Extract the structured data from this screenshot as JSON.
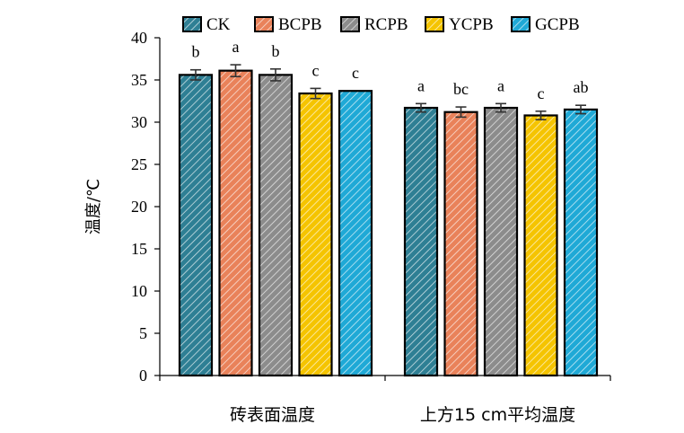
{
  "chart_data": {
    "type": "bar",
    "title": "",
    "ylabel": "温度/℃",
    "xlabel": "",
    "ylim": [
      0,
      40
    ],
    "yticks": [
      0,
      5,
      10,
      15,
      20,
      25,
      30,
      35,
      40
    ],
    "categories": [
      "砖表面温度",
      "上方15 cm平均温度"
    ],
    "legend_position": "top",
    "grid": false,
    "series": [
      {
        "name": "CK",
        "color": "#2E7F94",
        "values": [
          35.6,
          31.7
        ],
        "errors": [
          0.6,
          0.5
        ],
        "sig": [
          "b",
          "a"
        ]
      },
      {
        "name": "BCPB",
        "color": "#E9825A",
        "values": [
          36.1,
          31.2
        ],
        "errors": [
          0.7,
          0.6
        ],
        "sig": [
          "a",
          "bc"
        ]
      },
      {
        "name": "RCPB",
        "color": "#8C8C8C",
        "values": [
          35.6,
          31.7
        ],
        "errors": [
          0.7,
          0.5
        ],
        "sig": [
          "b",
          "a"
        ]
      },
      {
        "name": "YCPB",
        "color": "#F5C400",
        "values": [
          33.4,
          30.8
        ],
        "errors": [
          0.6,
          0.5
        ],
        "sig": [
          "c",
          "c"
        ]
      },
      {
        "name": "GCPB",
        "color": "#1FA9D6",
        "values": [
          33.7,
          31.5
        ],
        "errors": [
          0.0,
          0.5
        ],
        "sig": [
          "c",
          "ab"
        ]
      }
    ]
  }
}
